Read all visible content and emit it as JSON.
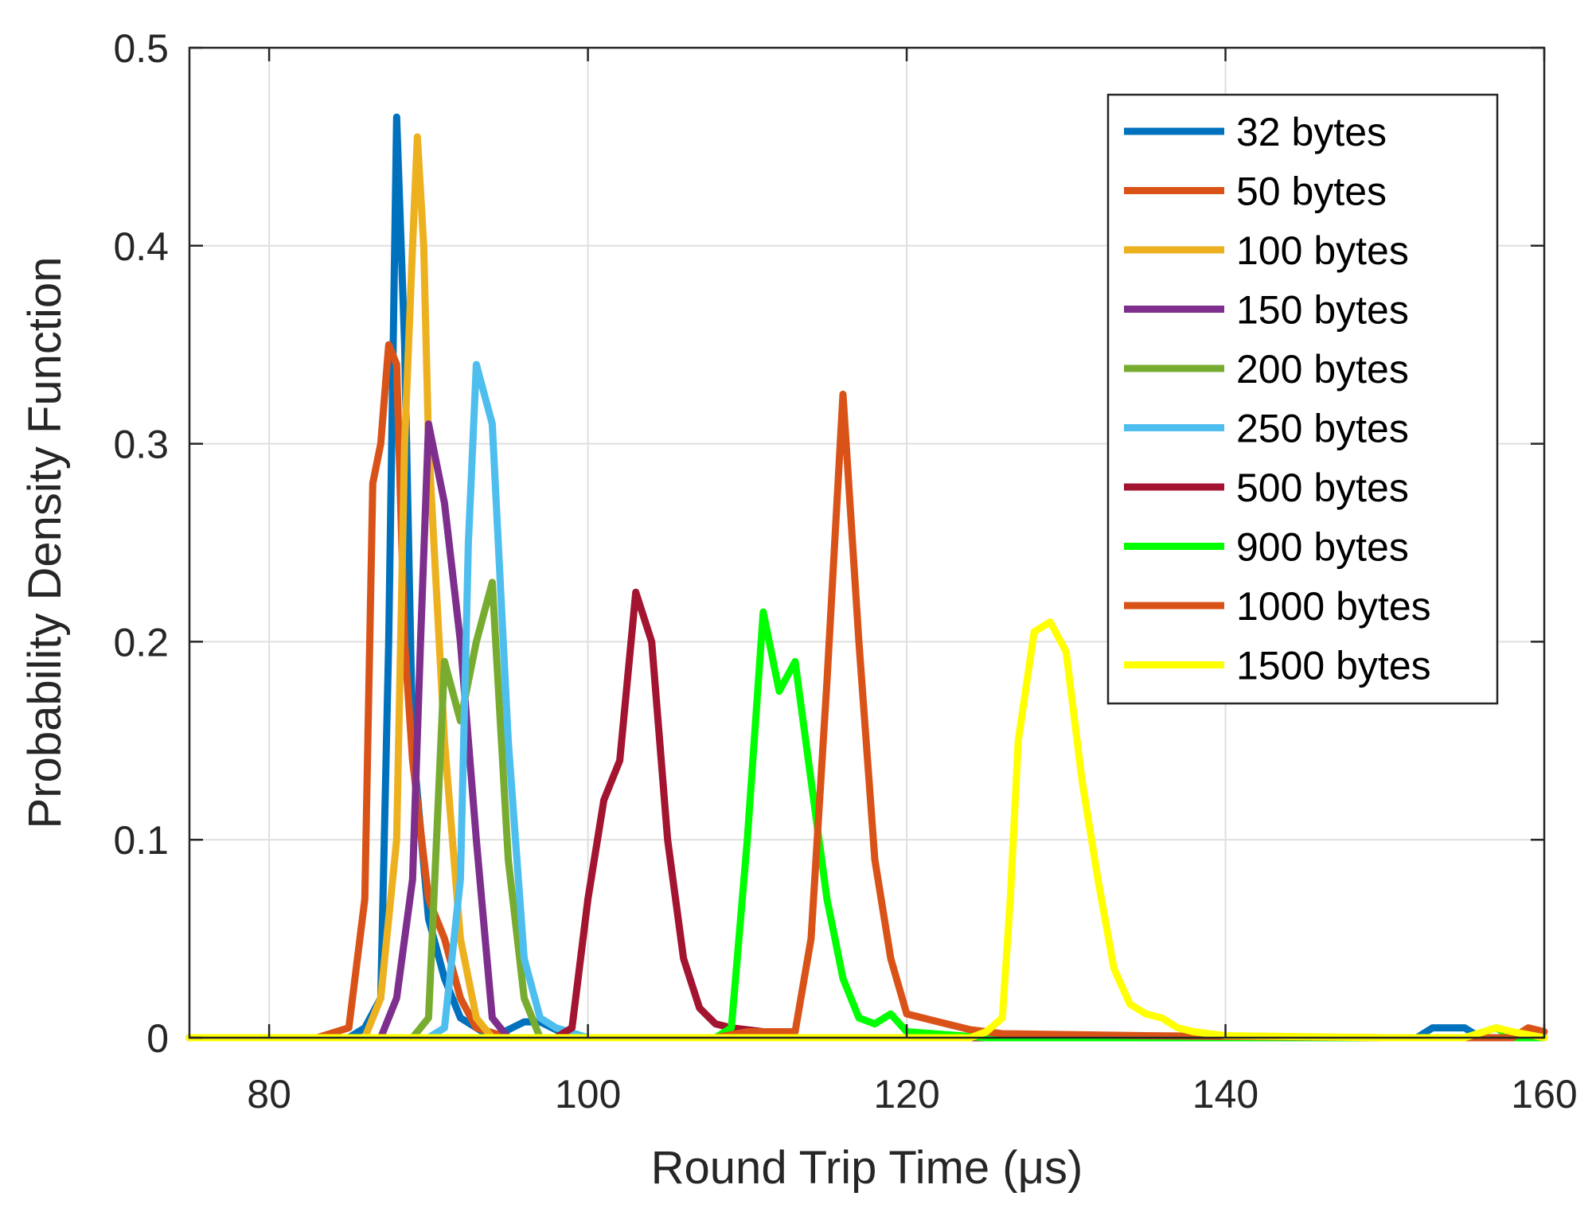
{
  "chart_data": {
    "type": "line",
    "title": "",
    "xlabel": "Round Trip Time (μs)",
    "ylabel": "Probability Density Function",
    "xlim": [
      75,
      160
    ],
    "ylim": [
      0,
      0.5
    ],
    "x_ticks": [
      80,
      100,
      120,
      140,
      160
    ],
    "y_ticks": [
      0,
      0.1,
      0.2,
      0.3,
      0.4,
      0.5
    ],
    "x_tick_labels": [
      "80",
      "100",
      "120",
      "140",
      "160"
    ],
    "y_tick_labels": [
      "0",
      "0.1",
      "0.2",
      "0.3",
      "0.4",
      "0.5"
    ],
    "grid": true,
    "legend_position": "top-right",
    "series": [
      {
        "name": "32 bytes",
        "color": "#0072BD",
        "points": [
          [
            75,
            0
          ],
          [
            85,
            0
          ],
          [
            86,
            0.005
          ],
          [
            87,
            0.02
          ],
          [
            87.5,
            0.2
          ],
          [
            88,
            0.465
          ],
          [
            88.5,
            0.35
          ],
          [
            89,
            0.15
          ],
          [
            90,
            0.06
          ],
          [
            91,
            0.03
          ],
          [
            92,
            0.01
          ],
          [
            94,
            0
          ],
          [
            96,
            0.008
          ],
          [
            97,
            0.008
          ],
          [
            98,
            0.004
          ],
          [
            100,
            0
          ],
          [
            152,
            0
          ],
          [
            153,
            0.005
          ],
          [
            155,
            0.005
          ],
          [
            156,
            0
          ],
          [
            160,
            0
          ]
        ]
      },
      {
        "name": "50 bytes",
        "color": "#D95319",
        "points": [
          [
            75,
            0
          ],
          [
            83,
            0
          ],
          [
            85,
            0.005
          ],
          [
            86,
            0.07
          ],
          [
            86.5,
            0.28
          ],
          [
            87,
            0.3
          ],
          [
            87.5,
            0.35
          ],
          [
            88,
            0.34
          ],
          [
            88.5,
            0.2
          ],
          [
            89,
            0.14
          ],
          [
            90,
            0.07
          ],
          [
            91,
            0.05
          ],
          [
            92,
            0.02
          ],
          [
            93,
            0.005
          ],
          [
            95,
            0
          ],
          [
            160,
            0
          ]
        ]
      },
      {
        "name": "100 bytes",
        "color": "#EDB120",
        "points": [
          [
            75,
            0
          ],
          [
            86,
            0
          ],
          [
            87,
            0.02
          ],
          [
            88,
            0.1
          ],
          [
            88.5,
            0.3
          ],
          [
            89,
            0.4
          ],
          [
            89.3,
            0.455
          ],
          [
            89.7,
            0.4
          ],
          [
            90,
            0.3
          ],
          [
            91,
            0.15
          ],
          [
            92,
            0.05
          ],
          [
            93,
            0.01
          ],
          [
            94,
            0
          ],
          [
            160,
            0
          ]
        ]
      },
      {
        "name": "150 bytes",
        "color": "#7E2F8E",
        "points": [
          [
            75,
            0
          ],
          [
            87,
            0
          ],
          [
            88,
            0.02
          ],
          [
            89,
            0.08
          ],
          [
            89.5,
            0.2
          ],
          [
            90,
            0.31
          ],
          [
            91,
            0.27
          ],
          [
            92,
            0.2
          ],
          [
            93,
            0.1
          ],
          [
            94,
            0.01
          ],
          [
            95,
            0
          ],
          [
            160,
            0
          ]
        ]
      },
      {
        "name": "200 bytes",
        "color": "#77AC30",
        "points": [
          [
            75,
            0
          ],
          [
            89,
            0
          ],
          [
            90,
            0.01
          ],
          [
            91,
            0.19
          ],
          [
            92,
            0.16
          ],
          [
            93,
            0.2
          ],
          [
            94,
            0.23
          ],
          [
            95,
            0.09
          ],
          [
            96,
            0.02
          ],
          [
            97,
            0
          ],
          [
            160,
            0
          ]
        ]
      },
      {
        "name": "250 bytes",
        "color": "#4DBEEE",
        "points": [
          [
            75,
            0
          ],
          [
            90,
            0
          ],
          [
            91,
            0.005
          ],
          [
            92,
            0.08
          ],
          [
            92.5,
            0.25
          ],
          [
            93,
            0.34
          ],
          [
            94,
            0.31
          ],
          [
            95,
            0.15
          ],
          [
            96,
            0.04
          ],
          [
            97,
            0.01
          ],
          [
            98,
            0.005
          ],
          [
            100,
            0
          ],
          [
            160,
            0
          ]
        ]
      },
      {
        "name": "500 bytes",
        "color": "#A2142F",
        "points": [
          [
            75,
            0
          ],
          [
            98,
            0
          ],
          [
            99,
            0.005
          ],
          [
            100,
            0.07
          ],
          [
            101,
            0.12
          ],
          [
            102,
            0.14
          ],
          [
            103,
            0.225
          ],
          [
            104,
            0.2
          ],
          [
            105,
            0.1
          ],
          [
            106,
            0.04
          ],
          [
            107,
            0.015
          ],
          [
            108,
            0.007
          ],
          [
            109,
            0.005
          ],
          [
            111,
            0.003
          ],
          [
            113,
            0
          ],
          [
            160,
            0
          ]
        ]
      },
      {
        "name": "900 bytes",
        "color": "#00FF00",
        "points": [
          [
            75,
            0
          ],
          [
            108,
            0
          ],
          [
            109,
            0.005
          ],
          [
            110,
            0.1
          ],
          [
            111,
            0.215
          ],
          [
            112,
            0.175
          ],
          [
            113,
            0.19
          ],
          [
            114,
            0.13
          ],
          [
            115,
            0.07
          ],
          [
            116,
            0.03
          ],
          [
            117,
            0.01
          ],
          [
            118,
            0.007
          ],
          [
            119,
            0.012
          ],
          [
            120,
            0.003
          ],
          [
            125,
            0
          ],
          [
            155,
            0
          ],
          [
            157,
            0.005
          ],
          [
            158,
            0
          ],
          [
            160,
            0
          ]
        ]
      },
      {
        "name": "1000 bytes",
        "color": "#D95319",
        "points": [
          [
            75,
            0
          ],
          [
            108,
            0
          ],
          [
            110,
            0.003
          ],
          [
            113,
            0.003
          ],
          [
            114,
            0.05
          ],
          [
            115,
            0.18
          ],
          [
            116,
            0.325
          ],
          [
            117,
            0.2
          ],
          [
            118,
            0.09
          ],
          [
            119,
            0.04
          ],
          [
            120,
            0.012
          ],
          [
            122,
            0.008
          ],
          [
            124,
            0.004
          ],
          [
            126,
            0.002
          ],
          [
            135,
            0.001
          ],
          [
            150,
            0
          ],
          [
            158,
            0
          ],
          [
            159,
            0.005
          ],
          [
            160,
            0.003
          ]
        ]
      },
      {
        "name": "1500 bytes",
        "color": "#FFFF00",
        "points": [
          [
            75,
            0
          ],
          [
            124,
            0
          ],
          [
            125,
            0.003
          ],
          [
            126,
            0.01
          ],
          [
            126.5,
            0.07
          ],
          [
            127,
            0.15
          ],
          [
            128,
            0.205
          ],
          [
            129,
            0.21
          ],
          [
            130,
            0.195
          ],
          [
            131,
            0.13
          ],
          [
            132,
            0.08
          ],
          [
            133,
            0.035
          ],
          [
            134,
            0.017
          ],
          [
            135,
            0.012
          ],
          [
            136,
            0.01
          ],
          [
            137,
            0.005
          ],
          [
            138,
            0.003
          ],
          [
            140,
            0.001
          ],
          [
            150,
            0
          ],
          [
            155,
            0
          ],
          [
            157,
            0.005
          ],
          [
            158,
            0.003
          ],
          [
            160,
            0
          ]
        ]
      }
    ]
  }
}
